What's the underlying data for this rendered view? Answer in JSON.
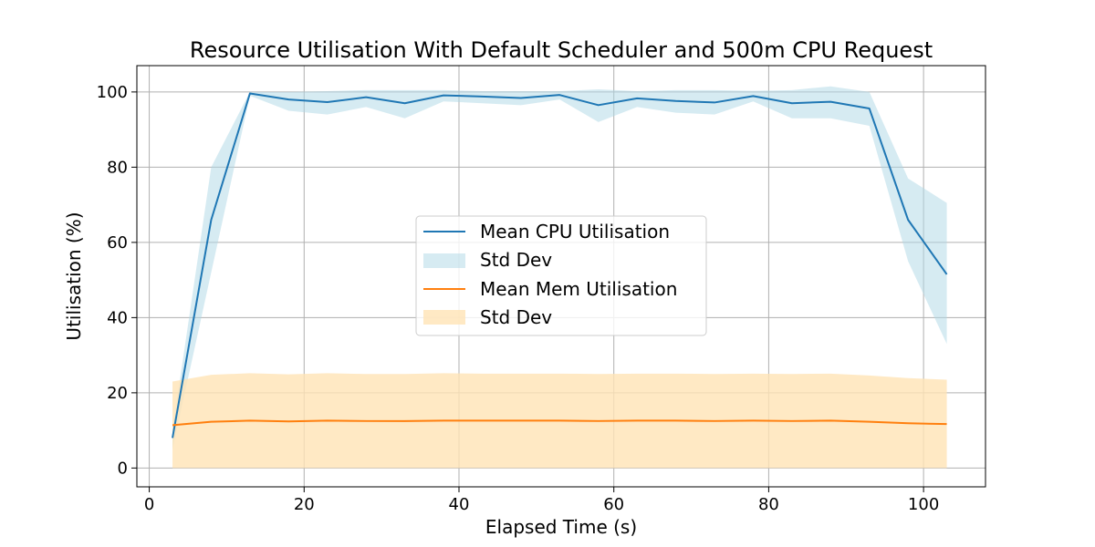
{
  "chart_data": {
    "type": "line",
    "title": "Resource Utilisation With Default Scheduler and 500m CPU Request",
    "xlabel": "Elapsed Time (s)",
    "ylabel": "Utilisation (%)",
    "xlim": [
      -1.6,
      108
    ],
    "ylim": [
      -5,
      107
    ],
    "xticks": [
      0,
      20,
      40,
      60,
      80,
      100
    ],
    "yticks": [
      0,
      20,
      40,
      60,
      80,
      100
    ],
    "grid": true,
    "legend_position": "center",
    "x": [
      3,
      8,
      13,
      18,
      23,
      28,
      33,
      38,
      43,
      48,
      53,
      58,
      63,
      68,
      73,
      78,
      83,
      88,
      93,
      98,
      103
    ],
    "series": [
      {
        "name": "Mean CPU Utilisation",
        "band_name": "Std Dev",
        "color": "#1f77b4",
        "band_color": "#add8e6",
        "values": [
          8,
          66,
          99.6,
          98,
          97.3,
          98.6,
          97,
          99.1,
          98.8,
          98.4,
          99.2,
          96.5,
          98.3,
          97.6,
          97.2,
          98.9,
          97,
          97.4,
          95.6,
          66,
          51.5
        ],
        "upper": [
          10,
          80,
          100,
          100,
          100.2,
          100.5,
          100.5,
          100.5,
          100.2,
          100.2,
          100.2,
          100.7,
          100.2,
          100.5,
          100.5,
          100.3,
          100.5,
          101.5,
          100,
          77,
          70.5
        ],
        "lower": [
          5,
          52,
          99,
          95,
          94,
          96,
          93,
          97.5,
          97,
          96.5,
          98,
          92,
          96,
          94.5,
          94,
          97.5,
          93,
          93,
          91,
          55,
          33
        ]
      },
      {
        "name": "Mean Mem Utilisation",
        "band_name": "Std Dev",
        "color": "#ff7f0e",
        "band_color": "#ffe4b5",
        "values": [
          11.4,
          12.3,
          12.6,
          12.4,
          12.6,
          12.5,
          12.5,
          12.6,
          12.6,
          12.6,
          12.6,
          12.5,
          12.6,
          12.6,
          12.5,
          12.6,
          12.5,
          12.6,
          12.3,
          11.9,
          11.7
        ],
        "upper": [
          23,
          24.8,
          25.2,
          24.9,
          25.2,
          25,
          25,
          25.2,
          25.1,
          25.1,
          25.1,
          25,
          25.1,
          25.1,
          25,
          25.1,
          25,
          25.1,
          24.6,
          23.9,
          23.5
        ],
        "lower": [
          0,
          0,
          0,
          0,
          0,
          0,
          0,
          0,
          0,
          0,
          0,
          0,
          0,
          0,
          0,
          0,
          0,
          0,
          0,
          0,
          0
        ]
      }
    ]
  }
}
